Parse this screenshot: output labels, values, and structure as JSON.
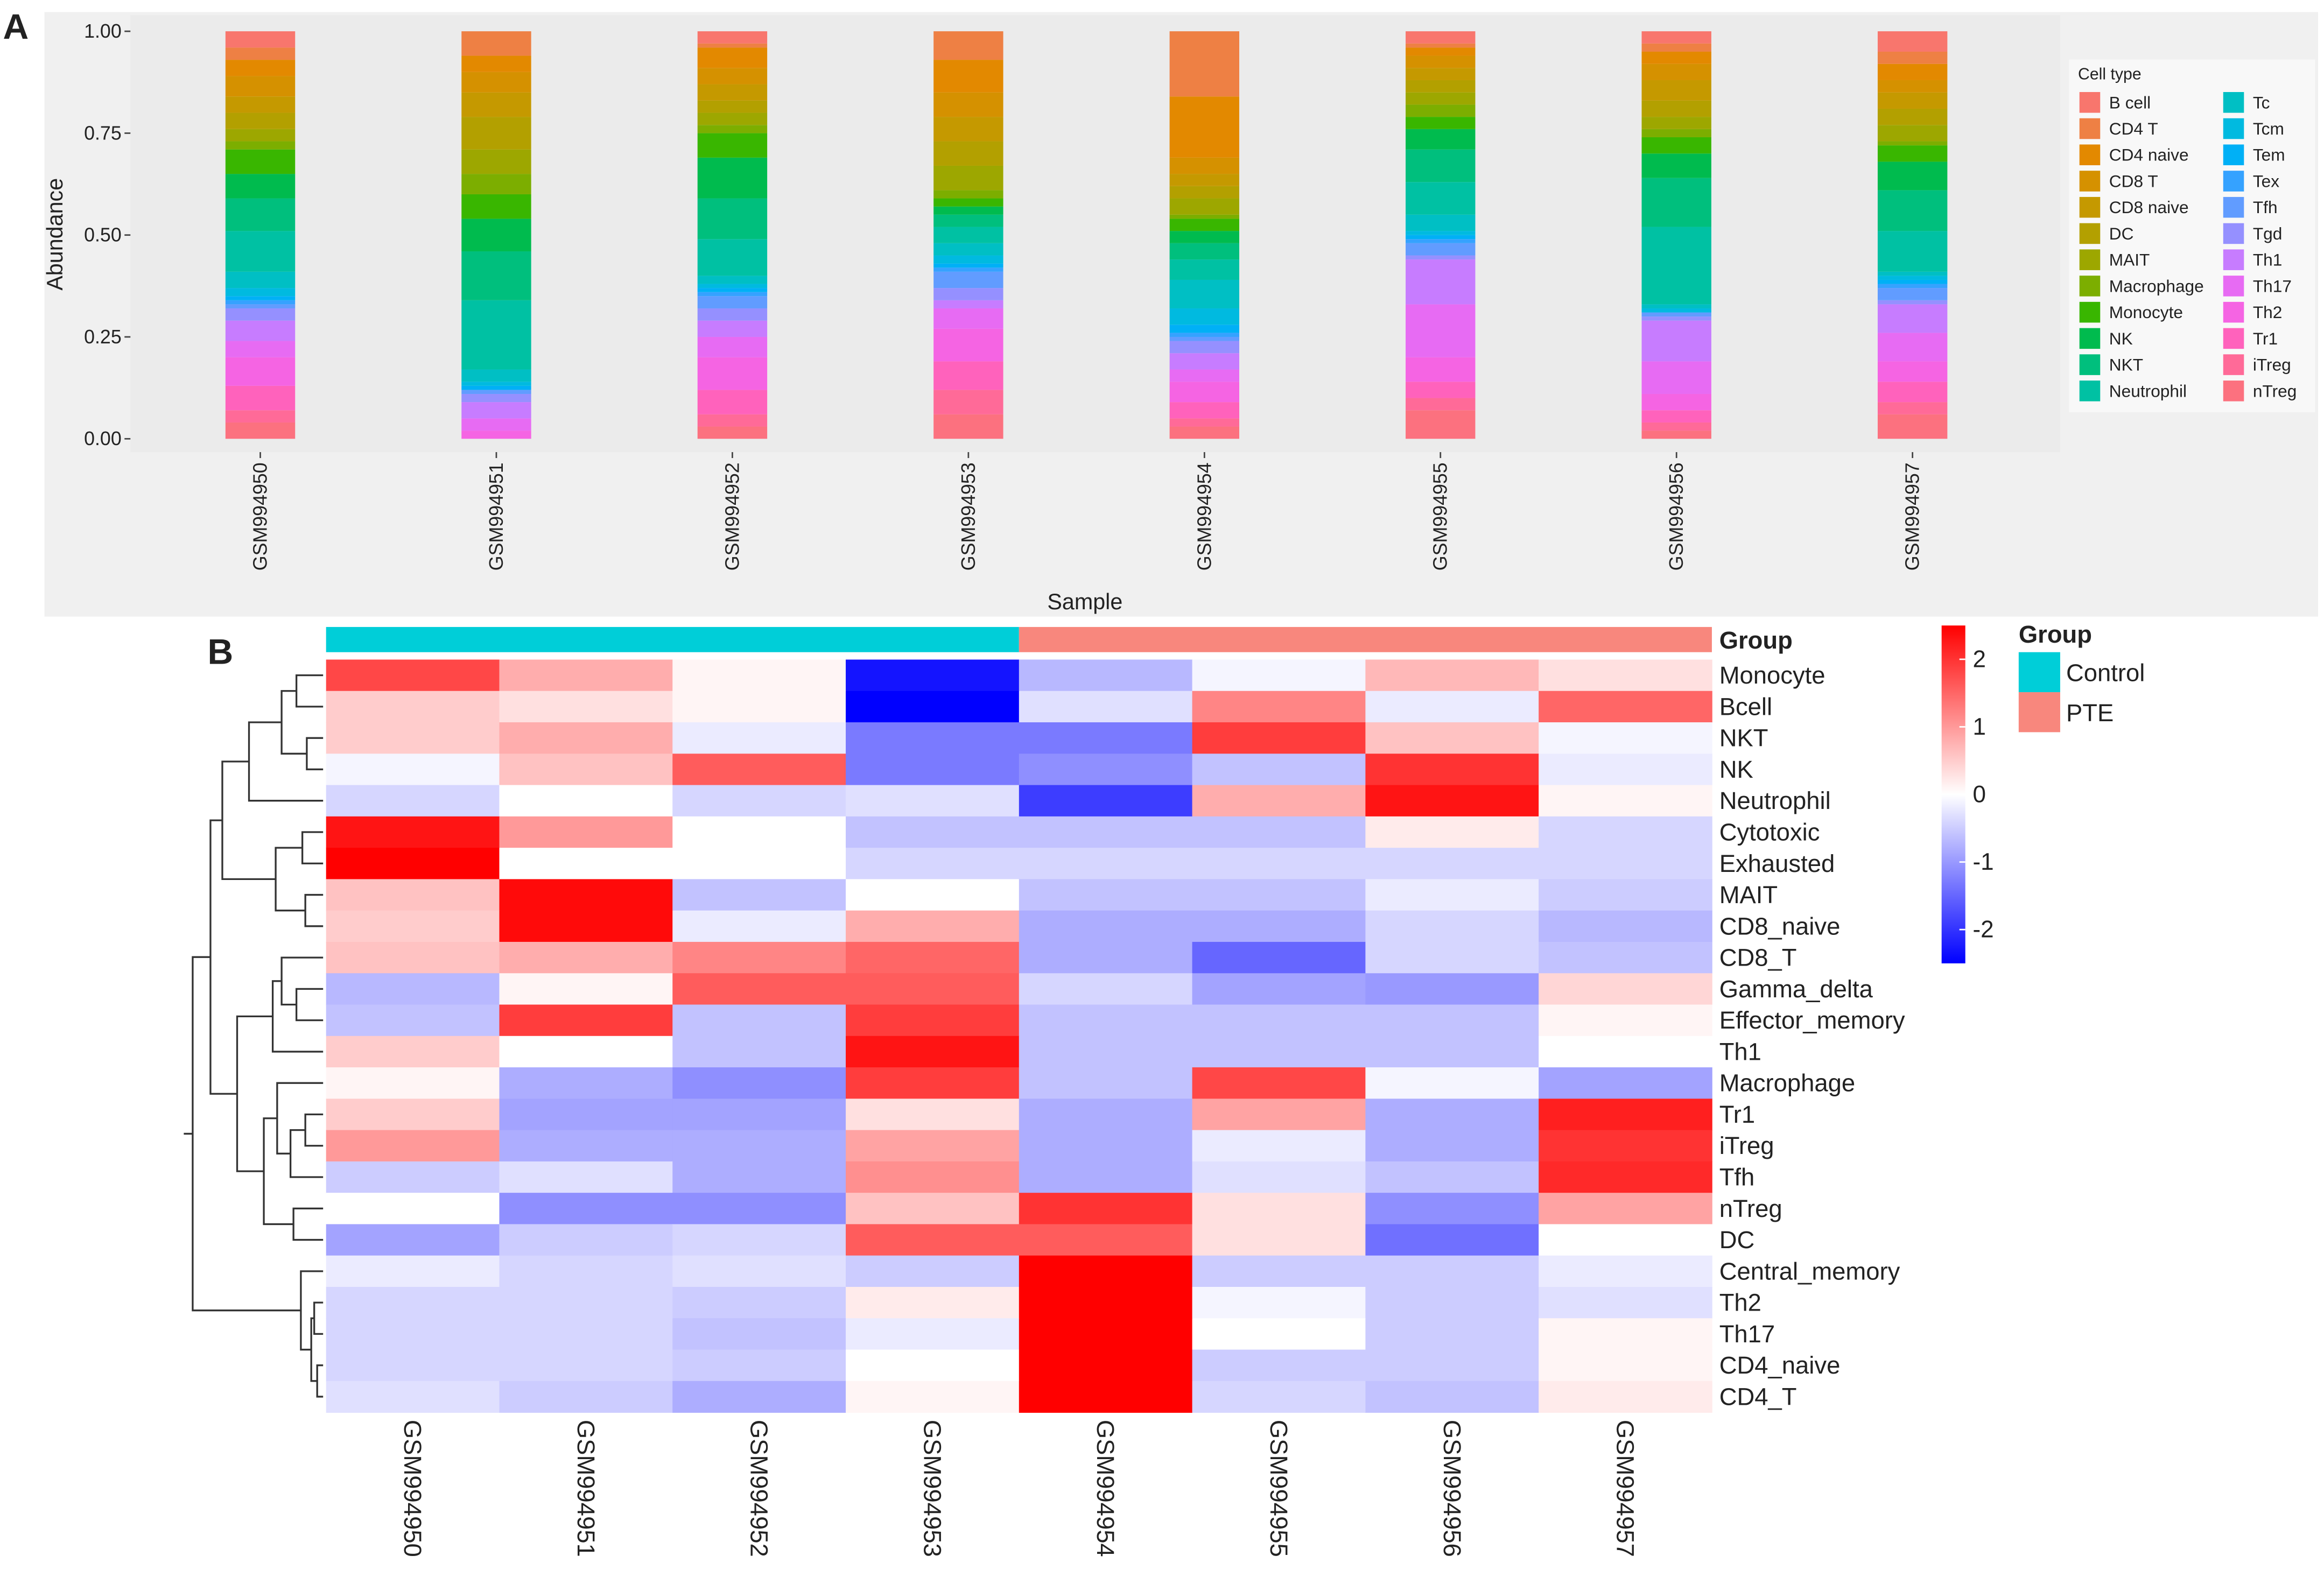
{
  "chart_data": [
    {
      "type": "stacked_bar",
      "panel_label": "A",
      "xlabel": "Sample",
      "ylabel": "Abundance",
      "legend_title": "Cell type",
      "categories": [
        "GSM994950",
        "GSM994951",
        "GSM994952",
        "GSM994953",
        "GSM994954",
        "GSM994955",
        "GSM994956",
        "GSM994957"
      ],
      "ylim": [
        0,
        1
      ],
      "yticks": [
        {
          "value": 0,
          "label": "0.00"
        },
        0.25,
        {
          "value": 0.5,
          "label": "0.50"
        },
        0.75,
        {
          "value": 1,
          "label": "1.00"
        }
      ],
      "series": [
        {
          "name": "B cell",
          "color": "#F8766D",
          "values": [
            0.04,
            0,
            0.03,
            0,
            0,
            0.03,
            0.03,
            0.05
          ]
        },
        {
          "name": "CD4 T",
          "color": "#EE8044",
          "values": [
            0.03,
            0.06,
            0.01,
            0.07,
            0.16,
            0.01,
            0.02,
            0.03
          ]
        },
        {
          "name": "CD4 naive",
          "color": "#E38900",
          "values": [
            0.04,
            0.04,
            0.05,
            0.08,
            0.15,
            0.02,
            0.03,
            0.04
          ]
        },
        {
          "name": "CD8 T",
          "color": "#D59100",
          "values": [
            0.05,
            0.05,
            0.04,
            0.06,
            0.04,
            0.03,
            0.04,
            0.03
          ]
        },
        {
          "name": "CD8 naive",
          "color": "#C59900",
          "values": [
            0.04,
            0.06,
            0.04,
            0.06,
            0.03,
            0.03,
            0.05,
            0.04
          ]
        },
        {
          "name": "DC",
          "color": "#B3A000",
          "values": [
            0.04,
            0.08,
            0.03,
            0.06,
            0.03,
            0.03,
            0.04,
            0.04
          ]
        },
        {
          "name": "MAIT",
          "color": "#9DA700",
          "values": [
            0.03,
            0.06,
            0.03,
            0.06,
            0.04,
            0.03,
            0.03,
            0.04
          ]
        },
        {
          "name": "Macrophage",
          "color": "#7CAE00",
          "values": [
            0.02,
            0.05,
            0.02,
            0.02,
            0.01,
            0.03,
            0.02,
            0.01
          ]
        },
        {
          "name": "Monocyte",
          "color": "#39B600",
          "values": [
            0.06,
            0.06,
            0.06,
            0.02,
            0.03,
            0.03,
            0.04,
            0.04
          ]
        },
        {
          "name": "NK",
          "color": "#00BB4E",
          "values": [
            0.06,
            0.08,
            0.1,
            0.02,
            0.03,
            0.05,
            0.06,
            0.07
          ]
        },
        {
          "name": "NKT",
          "color": "#00BF7D",
          "values": [
            0.08,
            0.12,
            0.1,
            0.03,
            0.04,
            0.08,
            0.12,
            0.1
          ]
        },
        {
          "name": "Neutrophil",
          "color": "#00C1A3",
          "values": [
            0.1,
            0.17,
            0.09,
            0.04,
            0.05,
            0.08,
            0.19,
            0.1
          ]
        },
        {
          "name": "Tc",
          "color": "#00BFC4",
          "values": [
            0.04,
            0.03,
            0.02,
            0.03,
            0.07,
            0.04,
            0.01,
            0.01
          ]
        },
        {
          "name": "Tcm",
          "color": "#00BAE0",
          "values": [
            0.02,
            0.01,
            0.01,
            0.02,
            0.04,
            0.01,
            0.01,
            0.01
          ]
        },
        {
          "name": "Tem",
          "color": "#00B0F6",
          "values": [
            0.01,
            0.01,
            0.01,
            0.01,
            0.02,
            0.01,
            0,
            0.01
          ]
        },
        {
          "name": "Tex",
          "color": "#35A2FF",
          "values": [
            0.01,
            0,
            0.01,
            0.01,
            0.01,
            0.01,
            0,
            0.01
          ]
        },
        {
          "name": "Tfh",
          "color": "#619CFF",
          "values": [
            0.01,
            0.01,
            0.03,
            0.04,
            0.01,
            0.03,
            0.01,
            0.03
          ]
        },
        {
          "name": "Tgd",
          "color": "#9590FF",
          "values": [
            0.03,
            0.02,
            0.03,
            0.03,
            0.03,
            0.01,
            0.01,
            0.01
          ]
        },
        {
          "name": "Th1",
          "color": "#C77CFF",
          "values": [
            0.05,
            0.04,
            0.04,
            0.02,
            0.04,
            0.11,
            0.1,
            0.07
          ]
        },
        {
          "name": "Th17",
          "color": "#E76BF3",
          "values": [
            0.04,
            0.03,
            0.05,
            0.05,
            0.03,
            0.13,
            0.08,
            0.07
          ]
        },
        {
          "name": "Th2",
          "color": "#F564E3",
          "values": [
            0.07,
            0.02,
            0.08,
            0.08,
            0.05,
            0.06,
            0.04,
            0.05
          ]
        },
        {
          "name": "Tr1",
          "color": "#FF62BC",
          "values": [
            0.06,
            0,
            0.06,
            0.07,
            0.04,
            0.04,
            0.03,
            0.05
          ]
        },
        {
          "name": "iTreg",
          "color": "#FF6A98",
          "values": [
            0.03,
            0,
            0.03,
            0.06,
            0.02,
            0.03,
            0.02,
            0.03
          ]
        },
        {
          "name": "nTreg",
          "color": "#FC717F",
          "values": [
            0.04,
            0,
            0.03,
            0.06,
            0.03,
            0.07,
            0.02,
            0.06
          ]
        }
      ]
    },
    {
      "type": "heatmap",
      "panel_label": "B",
      "columns": [
        "GSM994950",
        "GSM994951",
        "GSM994952",
        "GSM994953",
        "GSM994954",
        "GSM994955",
        "GSM994956",
        "GSM994957"
      ],
      "rows": [
        "Monocyte",
        "Bcell",
        "NKT",
        "NK",
        "Neutrophil",
        "Cytotoxic",
        "Exhausted",
        "MAIT",
        "CD8_naive",
        "CD8_T",
        "Gamma_delta",
        "Effector_memory",
        "Th1",
        "Macrophage",
        "Tr1",
        "iTreg",
        "Tfh",
        "nTreg",
        "DC",
        "Central_memory",
        "Th2",
        "Th17",
        "CD4_naive",
        "CD4_T"
      ],
      "values": [
        [
          1.8,
          0.8,
          0.1,
          -2.3,
          -0.7,
          -0.1,
          0.7,
          0.3
        ],
        [
          0.5,
          0.3,
          0.1,
          -2.5,
          -0.3,
          1.2,
          -0.2,
          1.5
        ],
        [
          0.5,
          0.8,
          -0.2,
          -1.3,
          -1.3,
          1.9,
          0.6,
          -0.1
        ],
        [
          -0.1,
          0.6,
          1.6,
          -1.3,
          -1.1,
          -0.6,
          2.0,
          -0.2
        ],
        [
          -0.4,
          0.0,
          -0.4,
          -0.3,
          -1.9,
          0.8,
          2.3,
          0.1
        ],
        [
          2.3,
          1.0,
          0.0,
          -0.6,
          -0.6,
          -0.6,
          0.2,
          -0.4
        ],
        [
          2.5,
          0.0,
          0.0,
          -0.4,
          -0.4,
          -0.4,
          -0.4,
          -0.4
        ],
        [
          0.6,
          2.4,
          -0.6,
          0.0,
          -0.6,
          -0.6,
          -0.2,
          -0.5
        ],
        [
          0.5,
          2.4,
          -0.2,
          0.8,
          -0.8,
          -0.8,
          -0.4,
          -0.7
        ],
        [
          0.6,
          0.8,
          1.2,
          1.5,
          -0.8,
          -1.5,
          -0.4,
          -0.6
        ],
        [
          -0.7,
          0.1,
          1.6,
          1.6,
          -0.4,
          -0.9,
          -1.0,
          0.4
        ],
        [
          -0.6,
          1.9,
          -0.6,
          1.9,
          -0.6,
          -0.6,
          -0.6,
          0.1
        ],
        [
          0.5,
          0.0,
          -0.6,
          2.3,
          -0.6,
          -0.6,
          -0.6,
          0.0
        ],
        [
          0.1,
          -0.8,
          -1.1,
          1.9,
          -0.6,
          1.8,
          -0.1,
          -0.9
        ],
        [
          0.5,
          -0.9,
          -0.9,
          0.3,
          -0.8,
          0.9,
          -0.8,
          2.2
        ],
        [
          1.0,
          -0.8,
          -0.8,
          0.9,
          -0.8,
          -0.2,
          -0.8,
          2.0
        ],
        [
          -0.5,
          -0.3,
          -0.8,
          1.1,
          -0.8,
          -0.3,
          -0.6,
          2.1
        ],
        [
          0.0,
          -1.1,
          -1.1,
          0.6,
          2.0,
          0.3,
          -1.1,
          0.9
        ],
        [
          -0.9,
          -0.5,
          -0.4,
          1.6,
          1.6,
          0.3,
          -1.4,
          0.0
        ],
        [
          -0.2,
          -0.4,
          -0.3,
          -0.5,
          2.5,
          -0.5,
          -0.5,
          -0.2
        ],
        [
          -0.4,
          -0.4,
          -0.5,
          0.2,
          2.5,
          -0.1,
          -0.5,
          -0.3
        ],
        [
          -0.4,
          -0.4,
          -0.6,
          -0.2,
          2.5,
          0.0,
          -0.5,
          0.1
        ],
        [
          -0.4,
          -0.4,
          -0.5,
          0.0,
          2.5,
          -0.5,
          -0.5,
          0.1
        ],
        [
          -0.3,
          -0.5,
          -0.8,
          0.1,
          2.5,
          -0.4,
          -0.6,
          0.2
        ]
      ],
      "zlim": [
        -2.5,
        2.5
      ],
      "zticks": [
        -2,
        -1,
        0,
        1,
        2
      ],
      "colors": {
        "low": "#0000FF",
        "mid": "#FFFFFF",
        "high": "#FF0000"
      },
      "annotation": {
        "title": "Group",
        "groups": [
          {
            "name": "Control",
            "color": "#00CED8",
            "count": 4
          },
          {
            "name": "PTE",
            "color": "#F8877D",
            "count": 4
          }
        ]
      }
    }
  ]
}
